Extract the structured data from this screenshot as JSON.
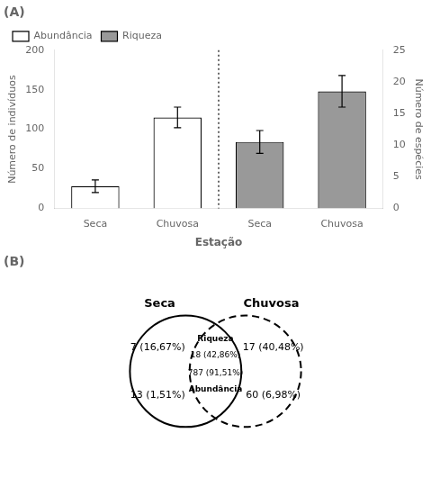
{
  "chart_data": [
    {
      "type": "bar",
      "title": "(A)",
      "categories": [
        "Seca",
        "Chuvosa",
        "Seca",
        "Chuvosa"
      ],
      "xlabel": "Estação",
      "ylabel": "Número de indivíduos",
      "y2label": "Número de espécies",
      "series": [
        {
          "name": "Abundância",
          "color": "#ffffff",
          "values": [
            28,
            115,
            null,
            null
          ],
          "errors": [
            8,
            13,
            null,
            null
          ]
        },
        {
          "name": "Riqueza",
          "color": "#999999",
          "axis": "y2",
          "values": [
            null,
            null,
            10.5,
            18.5
          ],
          "errors": [
            null,
            null,
            1.8,
            2.5
          ]
        }
      ],
      "ylim": [
        0,
        200
      ],
      "yticks": [
        0,
        50,
        100,
        150,
        200
      ],
      "y2lim": [
        0,
        25
      ],
      "y2ticks": [
        0,
        5,
        10,
        15,
        20,
        25
      ],
      "legend": "upper left",
      "grid": false
    },
    {
      "type": "venn",
      "title": "(B)",
      "sets": [
        {
          "name": "Seca",
          "line_style": "solid",
          "only": [
            "7 (16,67%)",
            "13 (1,51%)"
          ]
        },
        {
          "name": "Chuvosa",
          "line_style": "dashed",
          "only": [
            "17 (40,48%)",
            "60 (6,98%)"
          ]
        }
      ],
      "intersection": [
        {
          "label": "Riqueza",
          "value": "18 (42,86%)"
        },
        {
          "label": "Abundância",
          "value": "787 (91,51%)"
        }
      ]
    }
  ]
}
